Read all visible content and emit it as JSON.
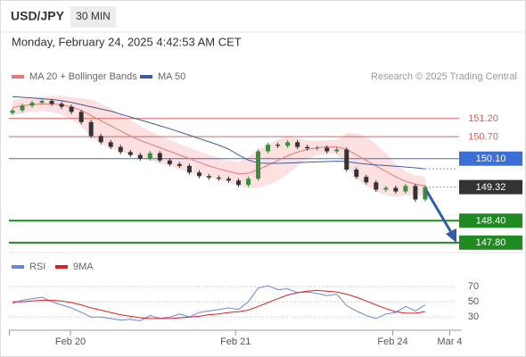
{
  "header": {
    "symbol": "USD/JPY",
    "interval": "30 MIN",
    "datetime": "Monday, February 24, 2025 4:42:53 AM CET"
  },
  "chart_data": [
    {
      "type": "candlestick",
      "source": "Research © 2025 Trading Central",
      "up_color": "#3c8c3c",
      "down_color": "#333333",
      "xlim": [
        0,
        45
      ],
      "ylim": [
        147.6,
        152.0
      ],
      "open": [
        151.35,
        151.42,
        151.55,
        151.63,
        151.68,
        151.6,
        151.52,
        151.38,
        151.1,
        150.72,
        150.55,
        150.42,
        150.28,
        150.2,
        150.1,
        150.25,
        150.05,
        149.95,
        149.9,
        149.72,
        149.62,
        149.58,
        149.55,
        149.5,
        149.38,
        149.55,
        150.3,
        150.48,
        150.45,
        150.55,
        150.42,
        150.38,
        150.4,
        150.3,
        150.35,
        149.8,
        149.6,
        149.45,
        149.25,
        149.3,
        149.2,
        149.35,
        148.98
      ],
      "high": [
        151.48,
        151.61,
        151.69,
        151.74,
        151.74,
        151.66,
        151.58,
        151.44,
        151.16,
        150.78,
        150.61,
        150.48,
        150.34,
        150.26,
        150.31,
        150.31,
        150.11,
        150.01,
        149.96,
        149.78,
        149.68,
        149.64,
        149.61,
        149.56,
        149.61,
        150.36,
        150.54,
        150.54,
        150.61,
        150.61,
        150.48,
        150.46,
        150.46,
        150.41,
        150.41,
        149.86,
        149.66,
        149.51,
        149.36,
        149.36,
        149.41,
        149.41,
        149.38
      ],
      "low": [
        151.29,
        151.36,
        151.49,
        151.57,
        151.54,
        151.46,
        151.32,
        151.04,
        150.66,
        150.49,
        150.36,
        150.22,
        150.14,
        150.04,
        150.04,
        149.99,
        149.89,
        149.84,
        149.66,
        149.56,
        149.52,
        149.49,
        149.44,
        149.32,
        149.32,
        149.49,
        150.24,
        150.39,
        150.39,
        150.36,
        150.32,
        150.32,
        150.24,
        150.24,
        149.74,
        149.54,
        149.39,
        149.19,
        149.19,
        149.14,
        149.14,
        148.92,
        148.92
      ],
      "close": [
        151.42,
        151.55,
        151.63,
        151.68,
        151.6,
        151.52,
        151.38,
        151.1,
        150.72,
        150.55,
        150.42,
        150.28,
        150.2,
        150.1,
        150.25,
        150.05,
        149.95,
        149.9,
        149.72,
        149.62,
        149.58,
        149.55,
        149.5,
        149.38,
        149.55,
        150.3,
        150.48,
        150.45,
        150.55,
        150.42,
        150.38,
        150.4,
        150.3,
        150.35,
        149.8,
        149.6,
        149.45,
        149.25,
        149.3,
        149.2,
        149.35,
        148.98,
        149.32
      ],
      "series": [
        {
          "name": "MA 20 + Bollinger Bands",
          "color": "#e8787a",
          "band_color": "#fde0e0",
          "values": [
            151.5,
            151.55,
            151.58,
            151.6,
            151.6,
            151.58,
            151.52,
            151.42,
            151.28,
            151.14,
            151.0,
            150.86,
            150.72,
            150.6,
            150.5,
            150.4,
            150.3,
            150.2,
            150.1,
            150.0,
            149.9,
            149.82,
            149.75,
            149.68,
            149.7,
            149.8,
            149.92,
            150.05,
            150.18,
            150.28,
            150.35,
            150.4,
            150.42,
            150.42,
            150.35,
            150.2,
            150.05,
            149.9,
            149.75,
            149.6,
            149.48,
            149.4,
            149.35
          ],
          "upper": [
            151.7,
            151.75,
            151.78,
            151.8,
            151.82,
            151.82,
            151.78,
            151.75,
            151.72,
            151.6,
            151.48,
            151.32,
            151.15,
            151.0,
            150.85,
            150.72,
            150.62,
            150.5,
            150.4,
            150.3,
            150.2,
            150.12,
            150.05,
            150.0,
            150.15,
            150.35,
            150.5,
            150.62,
            150.72,
            150.65,
            150.6,
            150.6,
            150.6,
            150.62,
            150.8,
            150.8,
            150.7,
            150.5,
            150.25,
            149.95,
            149.75,
            149.65,
            149.6
          ],
          "lower": [
            151.3,
            151.35,
            151.38,
            151.4,
            151.38,
            151.3,
            151.18,
            150.98,
            150.7,
            150.5,
            150.4,
            150.3,
            150.22,
            150.12,
            150.05,
            149.98,
            149.9,
            149.82,
            149.72,
            149.65,
            149.58,
            149.52,
            149.45,
            149.35,
            149.3,
            149.3,
            149.38,
            149.5,
            149.68,
            149.9,
            150.1,
            150.2,
            150.24,
            150.22,
            149.9,
            149.55,
            149.35,
            149.2,
            149.1,
            149.05,
            149.1,
            149.1,
            149.1
          ]
        },
        {
          "name": "MA 50",
          "color": "#3d5f99",
          "extend": true,
          "values": [
            151.8,
            151.78,
            151.76,
            151.74,
            151.72,
            151.69,
            151.64,
            151.58,
            151.52,
            151.46,
            151.4,
            151.32,
            151.24,
            151.16,
            151.08,
            151.0,
            150.92,
            150.83,
            150.74,
            150.65,
            150.56,
            150.47,
            150.36,
            150.2,
            150.06,
            149.98,
            149.97,
            149.97,
            149.98,
            149.99,
            150.0,
            150.01,
            150.02,
            150.03,
            150.02,
            149.98,
            149.95,
            149.93,
            149.91,
            149.89,
            149.87,
            149.85,
            149.82
          ]
        }
      ],
      "levels": [
        {
          "value": 151.2,
          "label": "151.20",
          "color": "#e06060",
          "line": "thin",
          "label_style": "text"
        },
        {
          "value": 150.7,
          "label": "150.70",
          "color": "#e06060",
          "line": "thin",
          "label_style": "text"
        },
        {
          "value": 150.1,
          "label": "150.10",
          "color": "#3a6fd8",
          "line": "thin",
          "label_style": "box"
        },
        {
          "value": 149.32,
          "label": "149.32",
          "color": "#333333",
          "line": "dotted",
          "label_style": "box"
        },
        {
          "value": 148.4,
          "label": "148.40",
          "color": "#1f8a1f",
          "line": "thick",
          "label_style": "box"
        },
        {
          "value": 147.8,
          "label": "147.80",
          "color": "#1f8a1f",
          "line": "thick",
          "label_style": "box"
        }
      ]
    },
    {
      "type": "line",
      "xlim": [
        0,
        45
      ],
      "ylim": [
        15,
        83
      ],
      "yticks": [
        70,
        50,
        30
      ],
      "grid": true,
      "xticks": [
        {
          "value": 5.9,
          "label": "Feb 20"
        },
        {
          "value": 22.7,
          "label": "Feb 21"
        },
        {
          "value": 38.7,
          "label": "Feb 24"
        },
        {
          "value": 44.5,
          "label": "Mar 4"
        }
      ],
      "series": [
        {
          "name": "RSI",
          "color": "#6a86e0",
          "values": [
            48,
            52,
            54,
            56,
            50,
            46,
            42,
            36,
            30,
            30,
            28,
            26,
            27,
            25,
            32,
            28,
            30,
            34,
            30,
            36,
            38,
            40,
            42,
            40,
            50,
            68,
            71,
            66,
            67,
            62,
            63,
            61,
            58,
            60,
            45,
            38,
            32,
            28,
            34,
            36,
            44,
            38,
            46
          ]
        },
        {
          "name": "9MA",
          "color": "#e02020",
          "values": [
            50,
            50,
            51,
            52,
            52,
            51,
            49,
            46,
            42,
            39,
            36,
            33,
            31,
            29,
            28,
            28,
            28,
            29,
            30,
            31,
            33,
            34,
            36,
            37,
            39,
            44,
            49,
            54,
            59,
            62,
            64,
            65,
            64,
            63,
            60,
            56,
            51,
            46,
            41,
            37,
            35,
            35,
            37
          ]
        }
      ]
    }
  ]
}
